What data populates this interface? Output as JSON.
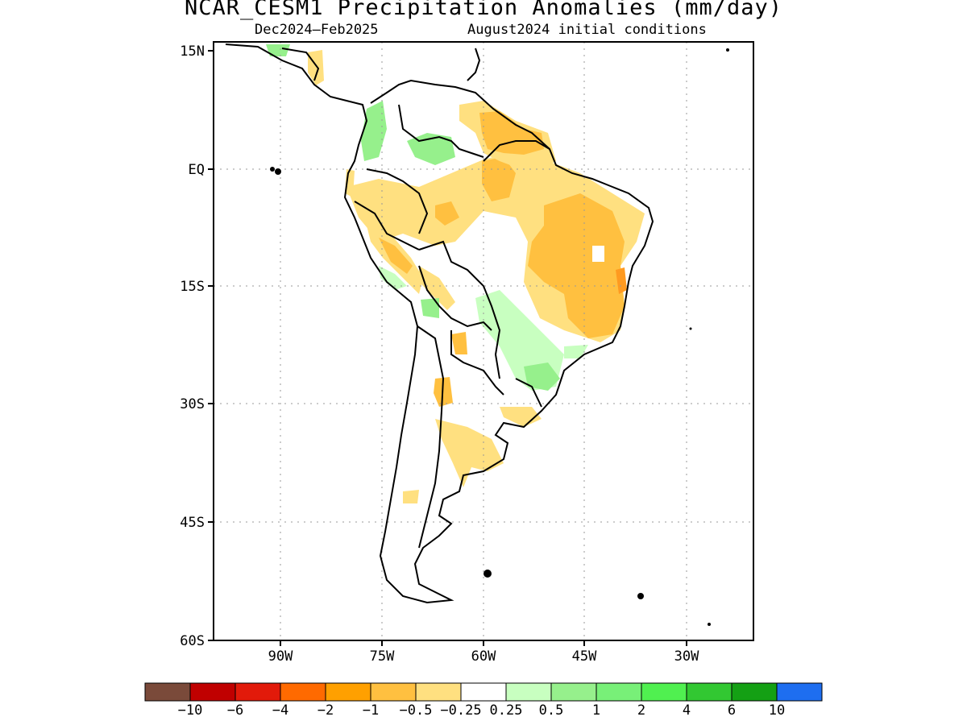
{
  "map": {
    "title": "NCAR_CESM1 Precipitation Anomalies (mm/day)",
    "subtitle_left": "Dec2024–Feb2025",
    "subtitle_right": "August2024 initial conditions",
    "lat_ticks": [
      "15N",
      "EQ",
      "15S",
      "30S",
      "45S",
      "60S"
    ],
    "lon_ticks": [
      "90W",
      "75W",
      "60W",
      "45W",
      "30W"
    ],
    "region": "South America"
  },
  "colorbar": {
    "colors": [
      "#7a4a3a",
      "#c00000",
      "#e21a0a",
      "#ff6a00",
      "#ffa000",
      "#ffc040",
      "#ffe080",
      "#ffffff",
      "#c8ffc0",
      "#96f08c",
      "#78f078",
      "#50f050",
      "#32c832",
      "#14a014",
      "#1e6ef0"
    ],
    "labels": [
      "−10",
      "−6",
      "−4",
      "−2",
      "−1",
      "−0.5",
      "−0.25",
      "0.25",
      "0.5",
      "1",
      "2",
      "4",
      "6",
      "10"
    ]
  }
}
